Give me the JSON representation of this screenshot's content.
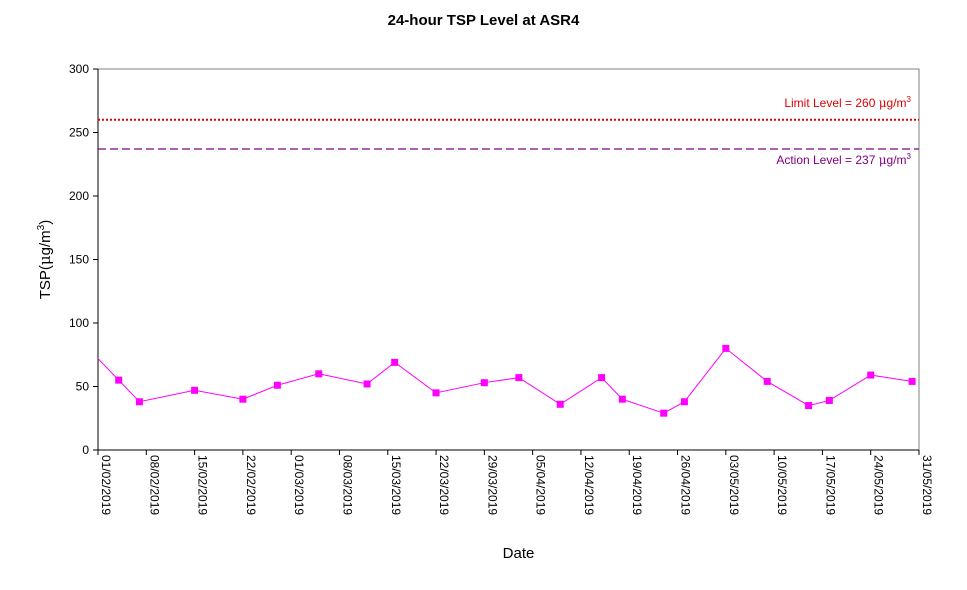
{
  "chart_data": {
    "type": "line",
    "title": "24-hour TSP Level at ASR4",
    "xlabel": "Date",
    "ylabel": "TSP(μg/m³)",
    "ylabel_parts": {
      "base": "TSP(",
      "mu": "μ",
      "unit": "g/m",
      "sup": "3",
      "close": ")"
    },
    "ylim": [
      0,
      300
    ],
    "yticks": [
      0,
      50,
      100,
      150,
      200,
      250,
      300
    ],
    "xlim": [
      "2019-02-01",
      "2019-05-31"
    ],
    "xtick_labels": [
      "01/02/2019",
      "08/02/2019",
      "15/02/2019",
      "22/02/2019",
      "01/03/2019",
      "08/03/2019",
      "15/03/2019",
      "22/03/2019",
      "29/03/2019",
      "05/04/2019",
      "12/04/2019",
      "19/04/2019",
      "26/04/2019",
      "03/05/2019",
      "10/05/2019",
      "17/05/2019",
      "24/05/2019",
      "31/05/2019"
    ],
    "grid": false,
    "series": [
      {
        "color": "#ff00ff",
        "marker": "square",
        "points": [
          {
            "x": "2019-02-04",
            "y": 55
          },
          {
            "x": "2019-02-07",
            "y": 38
          },
          {
            "x": "2019-02-15",
            "y": 47
          },
          {
            "x": "2019-02-22",
            "y": 40
          },
          {
            "x": "2019-02-27",
            "y": 51
          },
          {
            "x": "2019-03-05",
            "y": 60
          },
          {
            "x": "2019-03-12",
            "y": 52
          },
          {
            "x": "2019-03-16",
            "y": 69
          },
          {
            "x": "2019-03-22",
            "y": 45
          },
          {
            "x": "2019-03-29",
            "y": 53
          },
          {
            "x": "2019-04-03",
            "y": 57
          },
          {
            "x": "2019-04-09",
            "y": 36
          },
          {
            "x": "2019-04-15",
            "y": 57
          },
          {
            "x": "2019-04-18",
            "y": 40
          },
          {
            "x": "2019-04-24",
            "y": 29
          },
          {
            "x": "2019-04-27",
            "y": 38
          },
          {
            "x": "2019-05-03",
            "y": 80
          },
          {
            "x": "2019-05-09",
            "y": 54
          },
          {
            "x": "2019-05-15",
            "y": 35
          },
          {
            "x": "2019-05-18",
            "y": 39
          },
          {
            "x": "2019-05-24",
            "y": 59
          },
          {
            "x": "2019-05-30",
            "y": 54
          }
        ],
        "leading_value": {
          "x": "2019-02-01",
          "y": 72
        }
      }
    ],
    "reference_lines": [
      {
        "value": 260,
        "label": "Limit Level  = 260 μg/m³",
        "label_parts": {
          "base": "Limit Level  = 260 ",
          "mu": "μ",
          "unit": "g/m",
          "sup": "3"
        },
        "color": "#e00000",
        "style": "dotted"
      },
      {
        "value": 237,
        "label": "Action Level  = 237 μg/m³",
        "label_parts": {
          "base": "Action Level  = 237 ",
          "mu": "μ",
          "unit": "g/m",
          "sup": "3"
        },
        "color": "#800080",
        "style": "dashed"
      }
    ]
  }
}
